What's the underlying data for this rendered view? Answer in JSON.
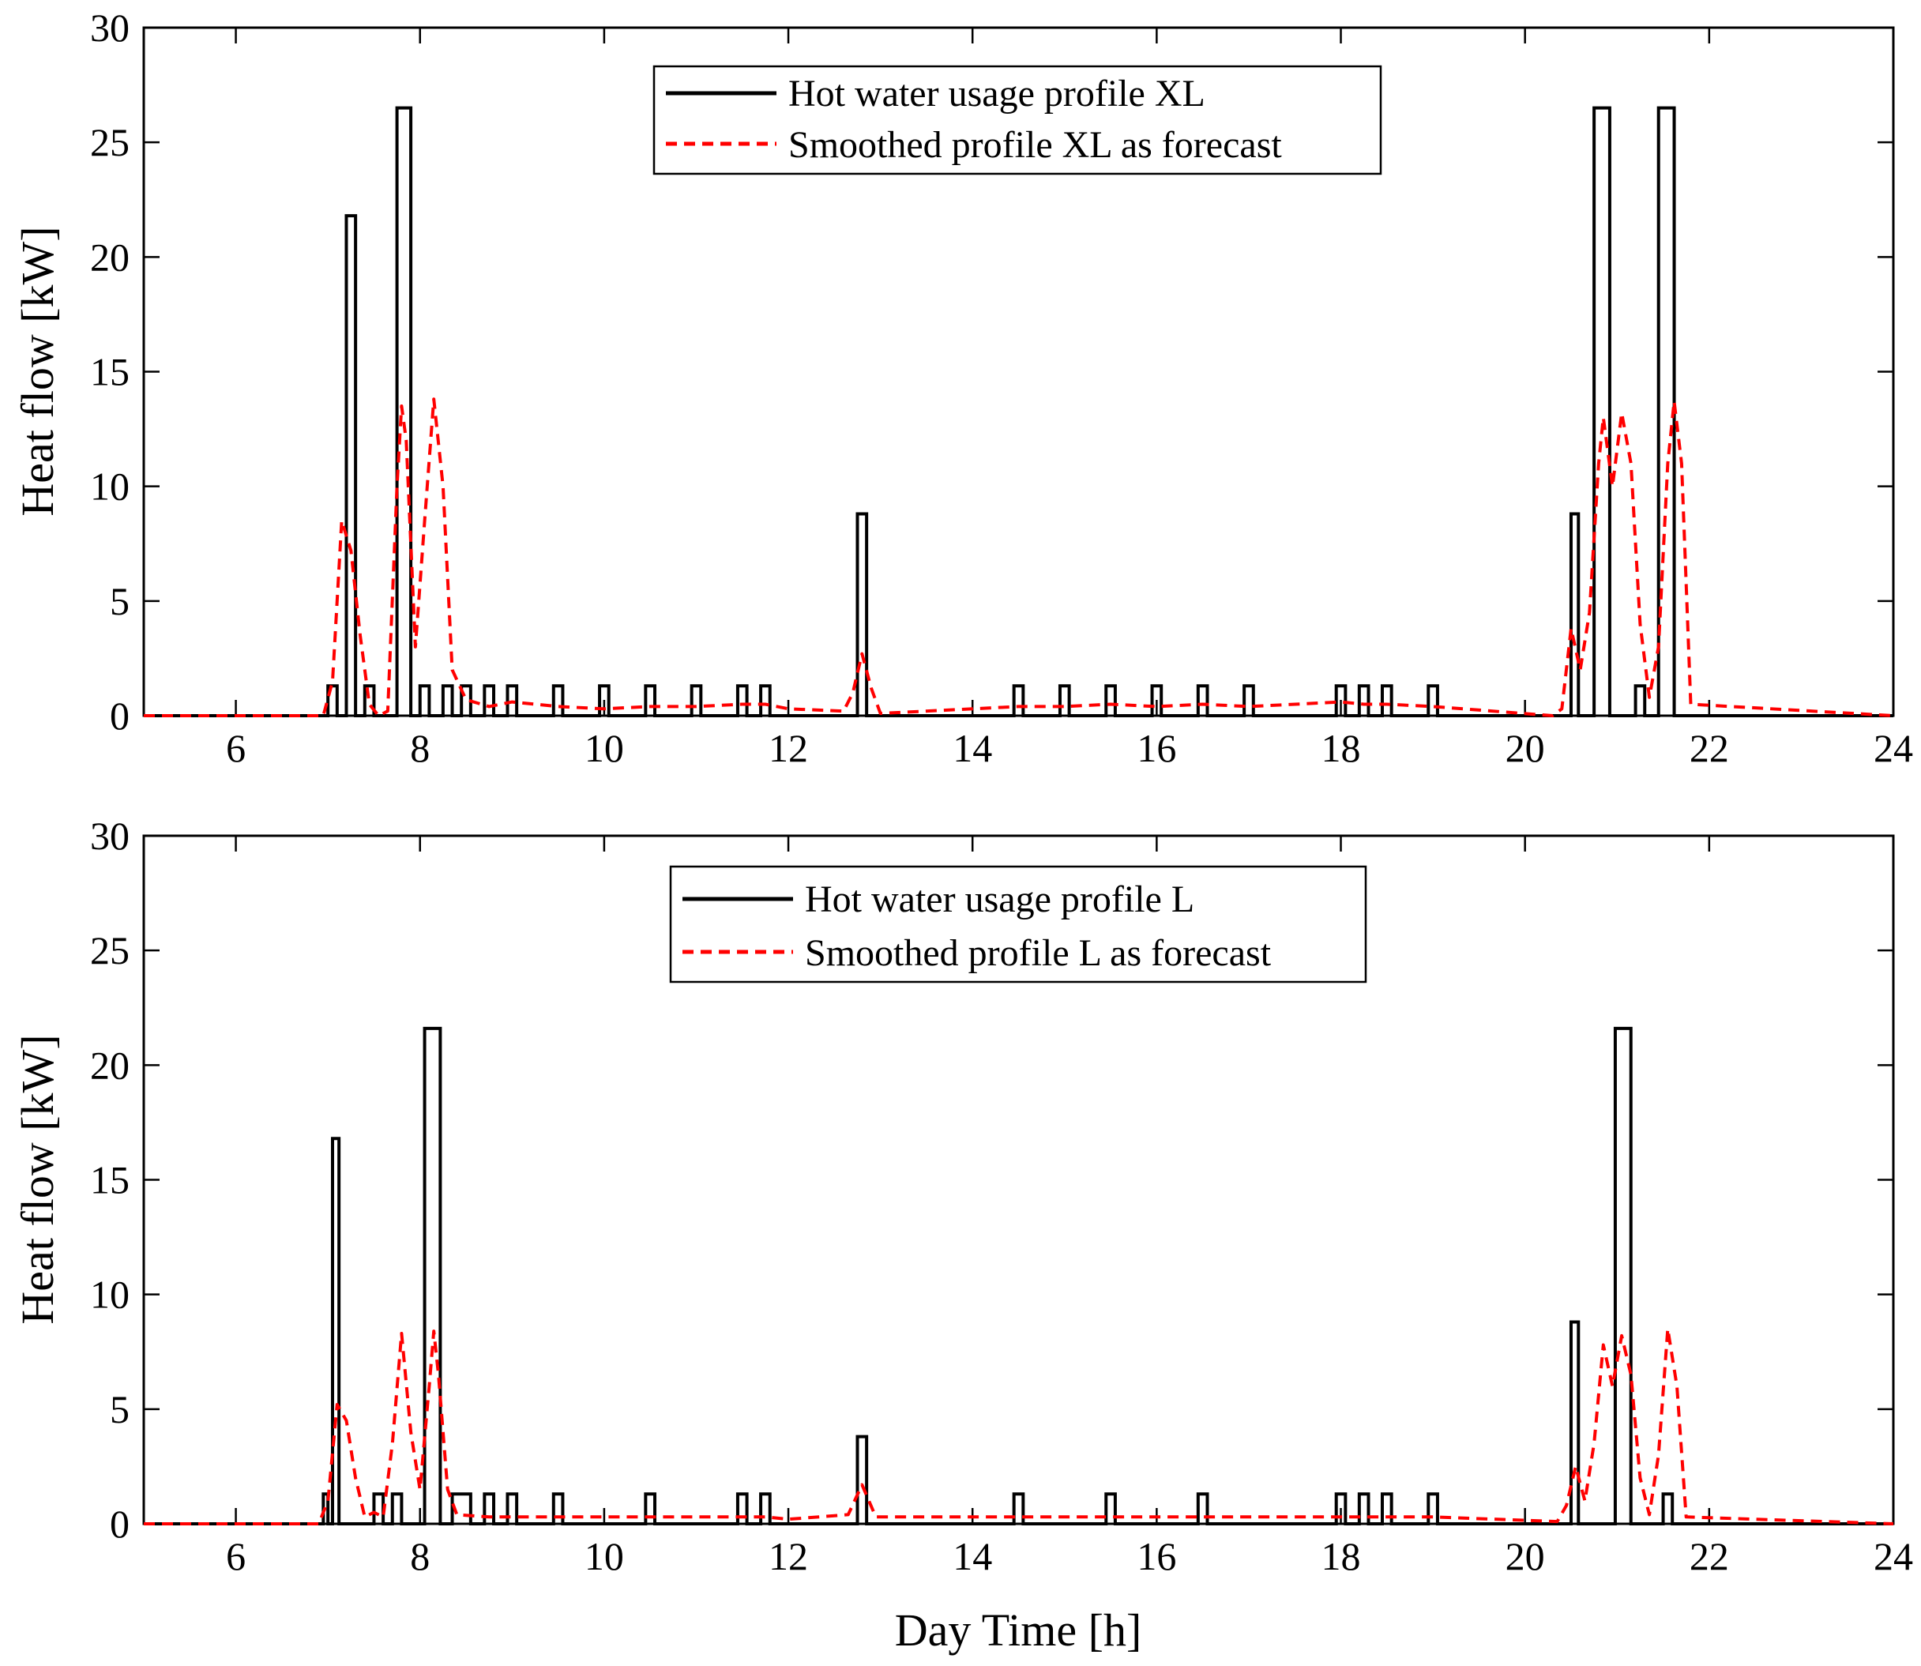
{
  "chart_data": [
    {
      "type": "line",
      "xlabel": "",
      "ylabel": "Heat flow [kW]",
      "xlim": [
        5,
        24
      ],
      "ylim": [
        0,
        30
      ],
      "xticks": [
        6,
        8,
        10,
        12,
        14,
        16,
        18,
        20,
        22,
        24
      ],
      "yticks": [
        0,
        5,
        10,
        15,
        20,
        25,
        30
      ],
      "legend_position": "top-center",
      "series": [
        {
          "name": "Hot water usage profile XL",
          "style": "solid",
          "color": "#000000",
          "pulses": [
            {
              "start": 7.0,
              "end": 7.1,
              "value": 1.3
            },
            {
              "start": 7.2,
              "end": 7.3,
              "value": 21.8
            },
            {
              "start": 7.4,
              "end": 7.5,
              "value": 1.3
            },
            {
              "start": 7.75,
              "end": 7.9,
              "value": 26.5
            },
            {
              "start": 8.0,
              "end": 8.1,
              "value": 1.3
            },
            {
              "start": 8.25,
              "end": 8.35,
              "value": 1.3
            },
            {
              "start": 8.45,
              "end": 8.55,
              "value": 1.3
            },
            {
              "start": 8.7,
              "end": 8.8,
              "value": 1.3
            },
            {
              "start": 8.95,
              "end": 9.05,
              "value": 1.3
            },
            {
              "start": 9.45,
              "end": 9.55,
              "value": 1.3
            },
            {
              "start": 9.95,
              "end": 10.05,
              "value": 1.3
            },
            {
              "start": 10.45,
              "end": 10.55,
              "value": 1.3
            },
            {
              "start": 10.95,
              "end": 11.05,
              "value": 1.3
            },
            {
              "start": 11.45,
              "end": 11.55,
              "value": 1.3
            },
            {
              "start": 11.7,
              "end": 11.8,
              "value": 1.3
            },
            {
              "start": 12.75,
              "end": 12.85,
              "value": 8.8
            },
            {
              "start": 14.45,
              "end": 14.55,
              "value": 1.3
            },
            {
              "start": 14.95,
              "end": 15.05,
              "value": 1.3
            },
            {
              "start": 15.45,
              "end": 15.55,
              "value": 1.3
            },
            {
              "start": 15.95,
              "end": 16.05,
              "value": 1.3
            },
            {
              "start": 16.45,
              "end": 16.55,
              "value": 1.3
            },
            {
              "start": 16.95,
              "end": 17.05,
              "value": 1.3
            },
            {
              "start": 17.95,
              "end": 18.05,
              "value": 1.3
            },
            {
              "start": 18.2,
              "end": 18.3,
              "value": 1.3
            },
            {
              "start": 18.45,
              "end": 18.55,
              "value": 1.3
            },
            {
              "start": 18.95,
              "end": 19.05,
              "value": 1.3
            },
            {
              "start": 20.5,
              "end": 20.58,
              "value": 8.8
            },
            {
              "start": 20.75,
              "end": 20.92,
              "value": 26.5
            },
            {
              "start": 21.2,
              "end": 21.3,
              "value": 1.3
            },
            {
              "start": 21.45,
              "end": 21.62,
              "value": 26.5
            }
          ]
        },
        {
          "name": "Smoothed profile XL as forecast",
          "style": "dashed",
          "color": "#ff0000",
          "x": [
            5.0,
            6.95,
            7.05,
            7.15,
            7.25,
            7.35,
            7.45,
            7.55,
            7.65,
            7.75,
            7.8,
            7.85,
            7.95,
            8.05,
            8.15,
            8.25,
            8.35,
            8.5,
            8.75,
            9.0,
            9.5,
            10.0,
            10.5,
            11.0,
            11.5,
            11.75,
            12.0,
            12.6,
            12.7,
            12.8,
            12.9,
            13.0,
            14.5,
            15.0,
            15.5,
            16.0,
            16.5,
            17.0,
            18.0,
            18.25,
            18.5,
            19.0,
            20.3,
            20.4,
            20.5,
            20.6,
            20.7,
            20.8,
            20.85,
            20.95,
            21.05,
            21.15,
            21.25,
            21.35,
            21.45,
            21.55,
            21.62,
            21.7,
            21.8,
            24.0
          ],
          "y": [
            0,
            0,
            1.5,
            8.5,
            7.2,
            3.5,
            0.5,
            0,
            0.2,
            10.0,
            13.5,
            12.0,
            3.0,
            8.5,
            13.8,
            10.0,
            2.0,
            0.7,
            0.4,
            0.6,
            0.4,
            0.3,
            0.4,
            0.4,
            0.5,
            0.5,
            0.3,
            0.2,
            1.0,
            2.7,
            1.2,
            0.1,
            0.4,
            0.4,
            0.5,
            0.4,
            0.5,
            0.4,
            0.6,
            0.5,
            0.5,
            0.4,
            0.0,
            0.3,
            3.8,
            2.0,
            4.5,
            11.0,
            13.0,
            10.0,
            13.2,
            11.0,
            4.0,
            0.8,
            3.0,
            11.0,
            13.7,
            11.0,
            0.5,
            0
          ]
        }
      ]
    },
    {
      "type": "line",
      "xlabel": "Day Time [h]",
      "ylabel": "Heat flow [kW]",
      "xlim": [
        5,
        24
      ],
      "ylim": [
        0,
        30
      ],
      "xticks": [
        6,
        8,
        10,
        12,
        14,
        16,
        18,
        20,
        22,
        24
      ],
      "yticks": [
        0,
        5,
        10,
        15,
        20,
        25,
        30
      ],
      "legend_position": "top-center",
      "series": [
        {
          "name": "Hot water usage profile L",
          "style": "solid",
          "color": "#000000",
          "pulses": [
            {
              "start": 6.95,
              "end": 7.0,
              "value": 1.3
            },
            {
              "start": 7.05,
              "end": 7.12,
              "value": 16.8
            },
            {
              "start": 7.5,
              "end": 7.6,
              "value": 1.3
            },
            {
              "start": 7.7,
              "end": 7.8,
              "value": 1.3
            },
            {
              "start": 8.05,
              "end": 8.22,
              "value": 21.6
            },
            {
              "start": 8.35,
              "end": 8.55,
              "value": 1.3
            },
            {
              "start": 8.7,
              "end": 8.8,
              "value": 1.3
            },
            {
              "start": 8.95,
              "end": 9.05,
              "value": 1.3
            },
            {
              "start": 9.45,
              "end": 9.55,
              "value": 1.3
            },
            {
              "start": 10.45,
              "end": 10.55,
              "value": 1.3
            },
            {
              "start": 11.45,
              "end": 11.55,
              "value": 1.3
            },
            {
              "start": 11.7,
              "end": 11.8,
              "value": 1.3
            },
            {
              "start": 12.75,
              "end": 12.85,
              "value": 3.8
            },
            {
              "start": 14.45,
              "end": 14.55,
              "value": 1.3
            },
            {
              "start": 15.45,
              "end": 15.55,
              "value": 1.3
            },
            {
              "start": 16.45,
              "end": 16.55,
              "value": 1.3
            },
            {
              "start": 17.95,
              "end": 18.05,
              "value": 1.3
            },
            {
              "start": 18.2,
              "end": 18.3,
              "value": 1.3
            },
            {
              "start": 18.45,
              "end": 18.55,
              "value": 1.3
            },
            {
              "start": 18.95,
              "end": 19.05,
              "value": 1.3
            },
            {
              "start": 20.5,
              "end": 20.58,
              "value": 8.8
            },
            {
              "start": 20.98,
              "end": 21.15,
              "value": 21.6
            },
            {
              "start": 21.5,
              "end": 21.6,
              "value": 1.3
            }
          ]
        },
        {
          "name": "Smoothed profile L as forecast",
          "style": "dashed",
          "color": "#ff0000",
          "x": [
            5.0,
            6.9,
            7.0,
            7.1,
            7.2,
            7.3,
            7.4,
            7.5,
            7.6,
            7.7,
            7.8,
            7.9,
            8.0,
            8.1,
            8.15,
            8.2,
            8.3,
            8.4,
            8.75,
            9.0,
            9.5,
            10.0,
            10.5,
            11.0,
            11.5,
            11.75,
            12.0,
            12.65,
            12.8,
            12.95,
            14.5,
            15.0,
            15.5,
            16.0,
            16.5,
            17.0,
            18.0,
            18.25,
            18.5,
            19.0,
            20.35,
            20.45,
            20.55,
            20.65,
            20.75,
            20.85,
            20.95,
            21.05,
            21.15,
            21.25,
            21.35,
            21.45,
            21.55,
            21.65,
            21.75,
            24.0
          ],
          "y": [
            0,
            0,
            1.0,
            5.2,
            4.5,
            2.0,
            0.3,
            0.5,
            0.3,
            3.5,
            8.3,
            4.0,
            1.5,
            6.0,
            8.4,
            6.5,
            1.5,
            0.4,
            0.3,
            0.3,
            0.3,
            0.3,
            0.3,
            0.3,
            0.3,
            0.3,
            0.2,
            0.4,
            1.7,
            0.3,
            0.3,
            0.3,
            0.3,
            0.3,
            0.3,
            0.3,
            0.3,
            0.3,
            0.3,
            0.3,
            0.1,
            0.8,
            2.5,
            1.0,
            3.5,
            7.8,
            6.0,
            8.2,
            6.5,
            2.0,
            0.4,
            3.0,
            8.5,
            6.0,
            0.3,
            0
          ]
        }
      ]
    }
  ]
}
